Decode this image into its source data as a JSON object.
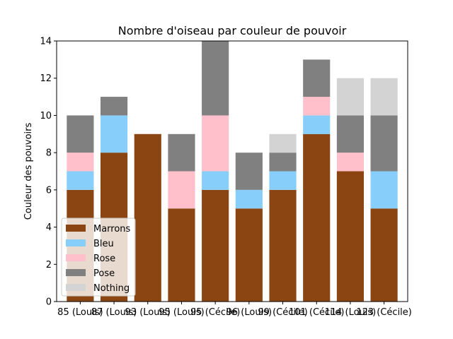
{
  "chart_data": {
    "type": "bar",
    "stacked": true,
    "title": "Nombre d'oiseau par couleur de pouvoir",
    "xlabel": "",
    "ylabel": "Couleur des pouvoirs",
    "ylim": [
      0,
      14
    ],
    "yticks": [
      0,
      2,
      4,
      6,
      8,
      10,
      12,
      14
    ],
    "grid": false,
    "legend_position": "lower-left",
    "categories": [
      "85 (Louis)",
      "87 (Louis)",
      "93 (Louis)",
      "95 (Louis)",
      "95 (Cécile)",
      "96 (Louis)",
      "99 (Cécile)",
      "101 (Cécile)",
      "114 (Louis)",
      "123 (Cécile)"
    ],
    "series": [
      {
        "name": "Marrons",
        "color": "#8b4513",
        "values": [
          6,
          8,
          9,
          5,
          6,
          5,
          6,
          9,
          7,
          5
        ]
      },
      {
        "name": "Bleu",
        "color": "#87cefa",
        "values": [
          1,
          2,
          0,
          0,
          1,
          1,
          1,
          1,
          0,
          2
        ]
      },
      {
        "name": "Rose",
        "color": "#ffc0cb",
        "values": [
          1,
          0,
          0,
          2,
          3,
          0,
          0,
          1,
          1,
          0
        ]
      },
      {
        "name": "Pose",
        "color": "#808080",
        "values": [
          2,
          1,
          0,
          2,
          4,
          2,
          1,
          2,
          2,
          3
        ]
      },
      {
        "name": "Nothing",
        "color": "#d3d3d3",
        "values": [
          0,
          0,
          0,
          0,
          0,
          0,
          1,
          0,
          2,
          2
        ]
      }
    ]
  }
}
